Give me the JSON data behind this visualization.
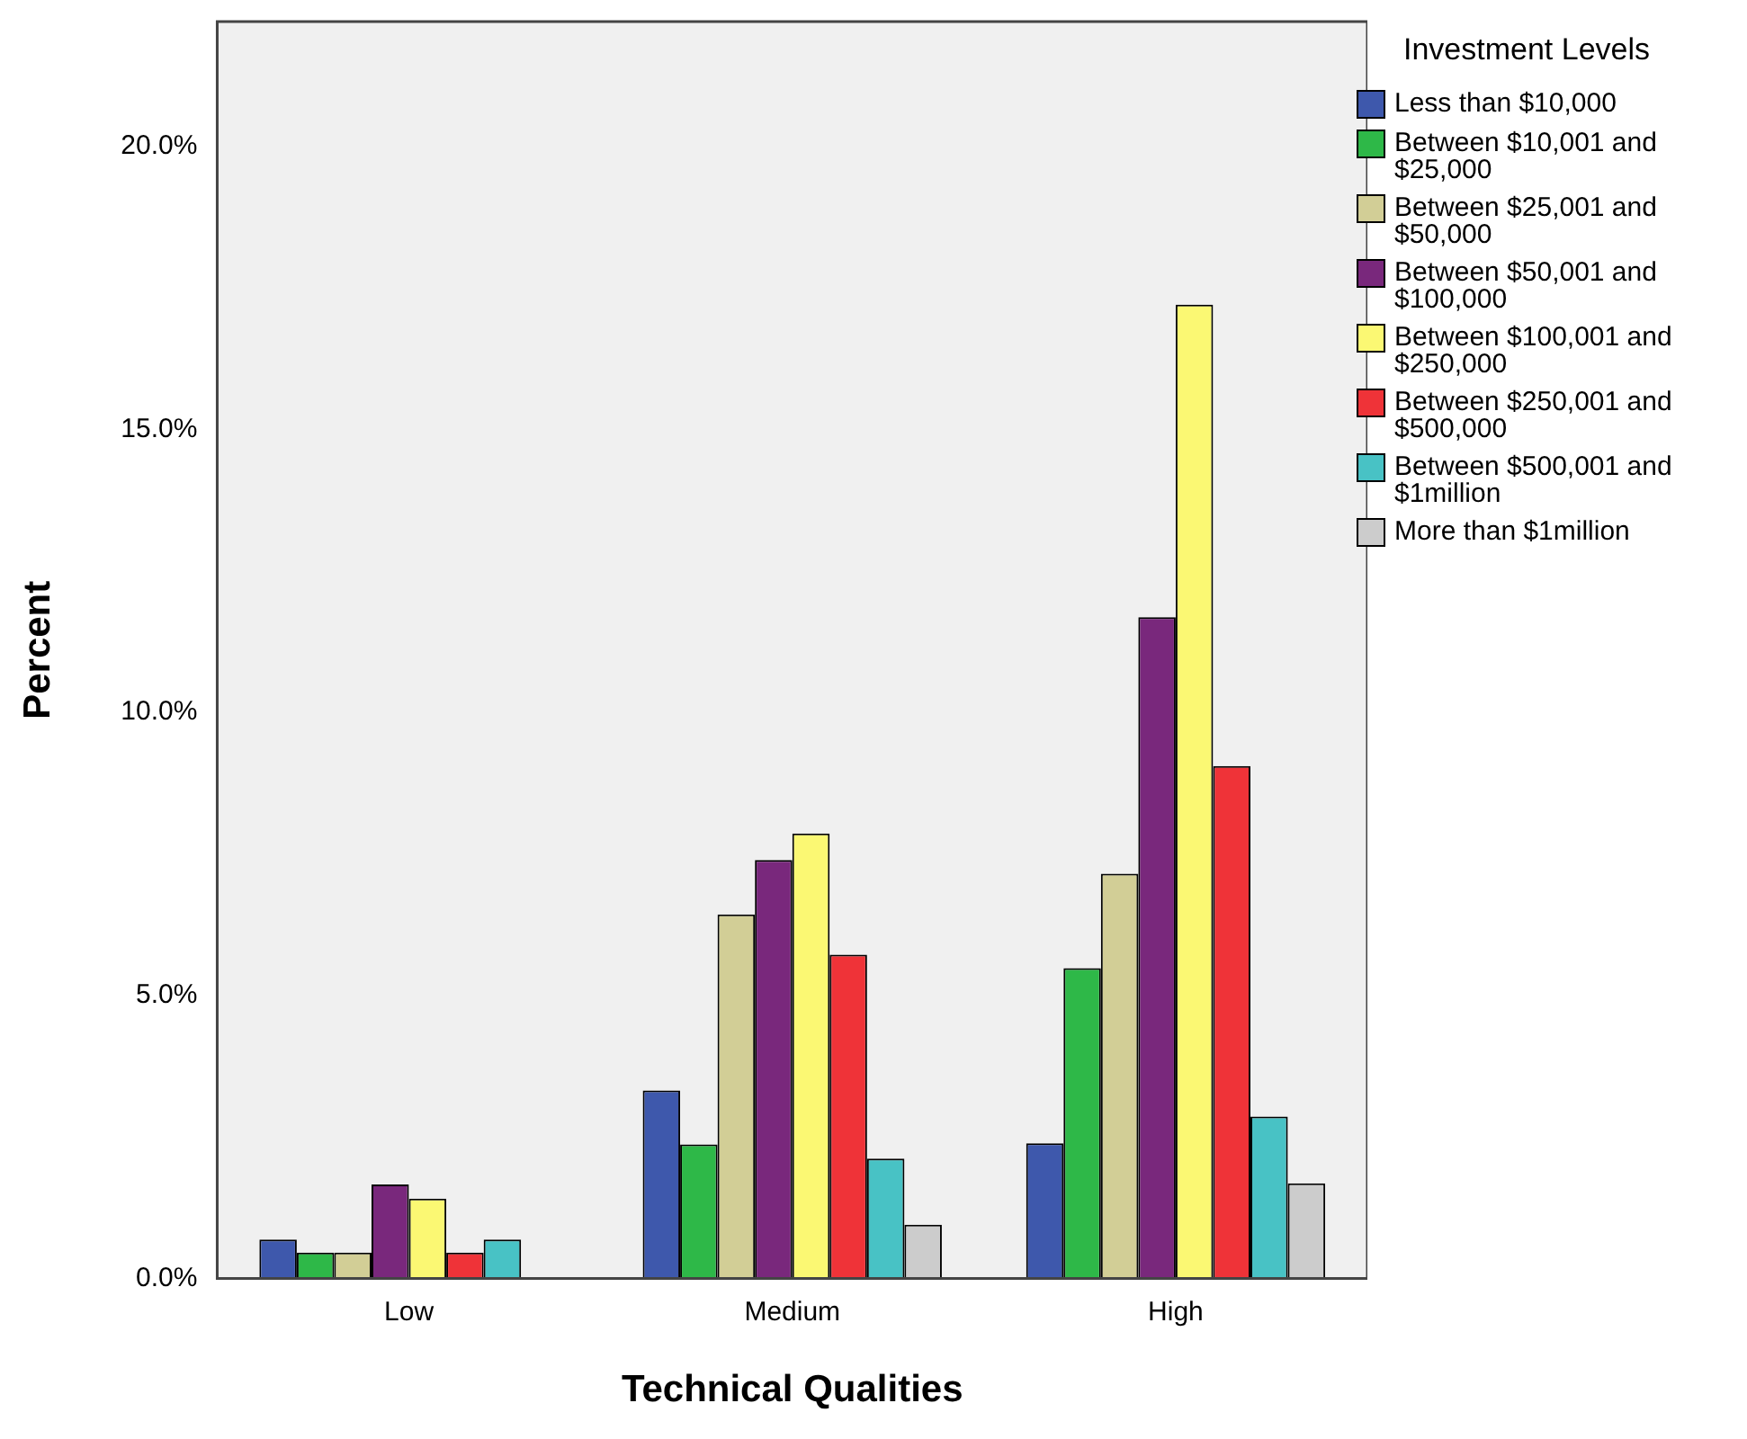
{
  "chart_data": {
    "type": "bar",
    "xlabel": "Technical Qualities",
    "ylabel": "Percent",
    "legend_title": "Investment Levels",
    "legend": "right",
    "categories": [
      "Low",
      "Medium",
      "High"
    ],
    "ylim": [
      0,
      22.2
    ],
    "yticks": [
      {
        "value": 0,
        "label": "0.0%"
      },
      {
        "value": 5,
        "label": "5.0%"
      },
      {
        "value": 10,
        "label": "10.0%"
      },
      {
        "value": 15,
        "label": "15.0%"
      },
      {
        "value": 20,
        "label": "20.0%"
      }
    ],
    "grid": false,
    "series": [
      {
        "name": "Less than $10,000",
        "color": "#3e58ac",
        "values": [
          0.69,
          3.32,
          2.39
        ]
      },
      {
        "name": "Between $10,001 and $25,000",
        "color": "#2eb848",
        "values": [
          0.46,
          2.37,
          5.48
        ]
      },
      {
        "name": "Between $25,001 and $50,000",
        "color": "#d2ce96",
        "values": [
          0.46,
          6.43,
          7.15
        ]
      },
      {
        "name": "Between $50,001 and $100,000",
        "color": "#79287c",
        "values": [
          1.66,
          7.39,
          11.68
        ]
      },
      {
        "name": "Between $100,001 and $250,000",
        "color": "#fbf873",
        "values": [
          1.41,
          7.86,
          17.2
        ]
      },
      {
        "name": "Between $250,001 and $500,000",
        "color": "#ef3338",
        "values": [
          0.46,
          5.72,
          9.05
        ]
      },
      {
        "name": "Between $500,001 and $1million",
        "color": "#48c2c5",
        "values": [
          0.69,
          2.12,
          2.86
        ]
      },
      {
        "name": "More than $1million",
        "color": "#cccccc",
        "values": [
          0,
          0.95,
          1.68
        ]
      }
    ]
  }
}
